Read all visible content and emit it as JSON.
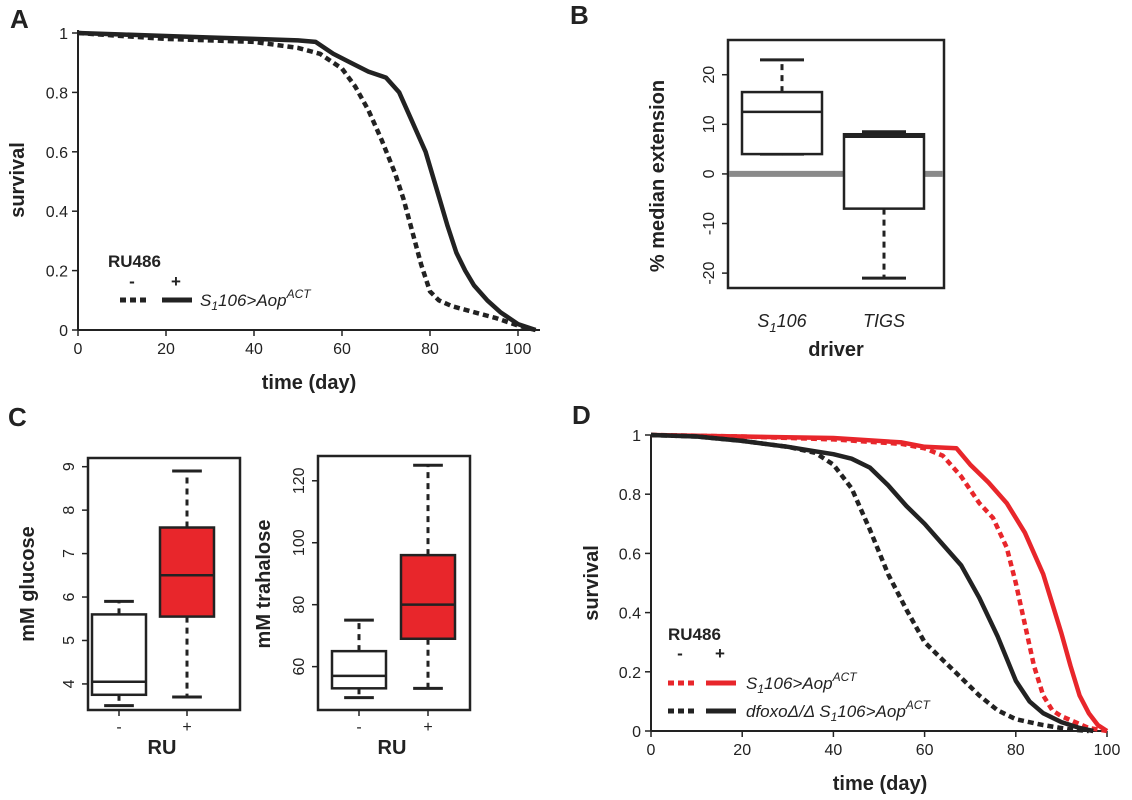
{
  "chart_data": [
    {
      "panel": "A",
      "type": "line",
      "xlabel": "time (day)",
      "ylabel": "survival",
      "xlim": [
        0,
        105
      ],
      "ylim": [
        0,
        1
      ],
      "xticks": [
        "0",
        "20",
        "40",
        "60",
        "80",
        "100"
      ],
      "yticks": [
        "0",
        "0.2",
        "0.4",
        "0.6",
        "0.8",
        "1"
      ],
      "legend": {
        "header": "RU486",
        "minus": "-",
        "plus": "+",
        "entries": [
          {
            "prefix": "S",
            "sub": "1",
            "middle": "106>Aop",
            "sup": "ACT"
          }
        ]
      },
      "series": [
        {
          "ru": "-",
          "color": "#222222",
          "dashed": true,
          "x": [
            0,
            10,
            20,
            30,
            40,
            50,
            55,
            60,
            63,
            66,
            69,
            72,
            74,
            76,
            78,
            80,
            82,
            85,
            90,
            95,
            100,
            104
          ],
          "y": [
            1,
            0.99,
            0.98,
            0.975,
            0.97,
            0.95,
            0.93,
            0.88,
            0.82,
            0.74,
            0.64,
            0.53,
            0.44,
            0.33,
            0.22,
            0.13,
            0.1,
            0.08,
            0.06,
            0.04,
            0.015,
            0
          ]
        },
        {
          "ru": "+",
          "color": "#222222",
          "dashed": false,
          "x": [
            0,
            10,
            20,
            30,
            40,
            50,
            54,
            58,
            62,
            66,
            70,
            73,
            76,
            79,
            82,
            84,
            86,
            88,
            90,
            93,
            96,
            100,
            104
          ],
          "y": [
            1,
            0.995,
            0.99,
            0.985,
            0.98,
            0.975,
            0.97,
            0.93,
            0.9,
            0.87,
            0.85,
            0.8,
            0.7,
            0.6,
            0.45,
            0.35,
            0.26,
            0.2,
            0.15,
            0.1,
            0.06,
            0.02,
            0
          ]
        }
      ]
    },
    {
      "panel": "B",
      "type": "box",
      "xlabel": "driver",
      "ylabel": "% median extension",
      "ylim": [
        -23,
        27
      ],
      "yticks": [
        20,
        10,
        0,
        -10,
        -20
      ],
      "reference_line": 0,
      "boxes": [
        {
          "label_main": "S",
          "label_sub": "1",
          "label_rest": "106",
          "whisker_low": 4,
          "q1": 4,
          "median": 12.5,
          "q3": 16.5,
          "whisker_high": 23
        },
        {
          "label_main": "TIGS",
          "label_sub": "",
          "label_rest": "",
          "whisker_low": -21,
          "q1": -7,
          "median": 7.5,
          "q3": 8,
          "whisker_high": 8.5
        }
      ]
    },
    {
      "panel": "C",
      "type": "box",
      "xlabel": "RU",
      "ylabel": "mM glucose",
      "ylim": [
        3.4,
        9.2
      ],
      "yticks": [
        4,
        5,
        6,
        7,
        8,
        9
      ],
      "categories": [
        "-",
        "+"
      ],
      "boxes": [
        {
          "ru": "-",
          "fill": "#ffffff",
          "whisker_low": 3.5,
          "q1": 3.75,
          "median": 4.05,
          "q3": 5.6,
          "whisker_high": 5.9
        },
        {
          "ru": "+",
          "fill": "#e8262b",
          "whisker_low": 3.7,
          "q1": 5.55,
          "median": 6.5,
          "q3": 7.6,
          "whisker_high": 8.9
        }
      ]
    },
    {
      "panel": "C",
      "type": "box",
      "xlabel": "RU",
      "ylabel": "mM trahalose",
      "ylim": [
        46,
        128
      ],
      "yticks": [
        60,
        80,
        100,
        120
      ],
      "categories": [
        "-",
        "+"
      ],
      "boxes": [
        {
          "ru": "-",
          "fill": "#ffffff",
          "whisker_low": 50,
          "q1": 53,
          "median": 57,
          "q3": 65,
          "whisker_high": 75
        },
        {
          "ru": "+",
          "fill": "#e8262b",
          "whisker_low": 53,
          "q1": 69,
          "median": 80,
          "q3": 96,
          "whisker_high": 125
        }
      ]
    },
    {
      "panel": "D",
      "type": "line",
      "xlabel": "time (day)",
      "ylabel": "survival",
      "xlim": [
        0,
        100
      ],
      "ylim": [
        0,
        1
      ],
      "xticks": [
        "0",
        "20",
        "40",
        "60",
        "80",
        "100"
      ],
      "yticks": [
        "0",
        "0.2",
        "0.4",
        "0.6",
        "0.8",
        "1"
      ],
      "legend": {
        "header": "RU486",
        "minus": "-",
        "plus": "+",
        "entries": [
          {
            "color": "#e8262b",
            "prefix": "S",
            "sub": "1",
            "middle": "106>Aop",
            "sup": "ACT"
          },
          {
            "color": "#222222",
            "prefix": "dfoxoΔ/Δ S",
            "sub": "1",
            "middle": "106>Aop",
            "sup": "ACT"
          }
        ]
      },
      "series": [
        {
          "group": "S1106>AopACT",
          "ru": "-",
          "color": "#e8262b",
          "dashed": true,
          "x": [
            0,
            20,
            40,
            55,
            60,
            64,
            68,
            72,
            75,
            78,
            80,
            82,
            84,
            86,
            88,
            90,
            93,
            96,
            100
          ],
          "y": [
            1,
            0.995,
            0.985,
            0.97,
            0.955,
            0.93,
            0.86,
            0.77,
            0.72,
            0.62,
            0.5,
            0.36,
            0.22,
            0.12,
            0.07,
            0.05,
            0.03,
            0.01,
            0
          ]
        },
        {
          "group": "S1106>AopACT",
          "ru": "+",
          "color": "#e8262b",
          "dashed": false,
          "x": [
            0,
            20,
            40,
            55,
            60,
            67,
            70,
            74,
            78,
            82,
            86,
            88,
            90,
            92,
            94,
            96,
            98,
            100
          ],
          "y": [
            1,
            0.995,
            0.99,
            0.975,
            0.96,
            0.955,
            0.9,
            0.84,
            0.77,
            0.67,
            0.53,
            0.43,
            0.33,
            0.22,
            0.12,
            0.06,
            0.02,
            0
          ]
        },
        {
          "group": "dfoxoΔ/Δ S1106>AopACT",
          "ru": "-",
          "color": "#222222",
          "dashed": true,
          "x": [
            0,
            10,
            20,
            30,
            36,
            40,
            44,
            48,
            52,
            56,
            60,
            64,
            68,
            72,
            76,
            80,
            86,
            92,
            96
          ],
          "y": [
            1,
            0.995,
            0.98,
            0.96,
            0.94,
            0.9,
            0.82,
            0.68,
            0.53,
            0.41,
            0.3,
            0.24,
            0.18,
            0.12,
            0.07,
            0.04,
            0.02,
            0.005,
            0
          ]
        },
        {
          "group": "dfoxoΔ/Δ S1106>AopACT",
          "ru": "+",
          "color": "#222222",
          "dashed": false,
          "x": [
            0,
            10,
            20,
            30,
            36,
            40,
            44,
            48,
            52,
            56,
            60,
            64,
            68,
            72,
            76,
            80,
            83,
            86,
            90,
            94,
            97
          ],
          "y": [
            1,
            0.995,
            0.98,
            0.96,
            0.945,
            0.935,
            0.92,
            0.89,
            0.83,
            0.76,
            0.7,
            0.63,
            0.56,
            0.45,
            0.32,
            0.17,
            0.1,
            0.06,
            0.03,
            0.01,
            0
          ]
        }
      ]
    }
  ]
}
